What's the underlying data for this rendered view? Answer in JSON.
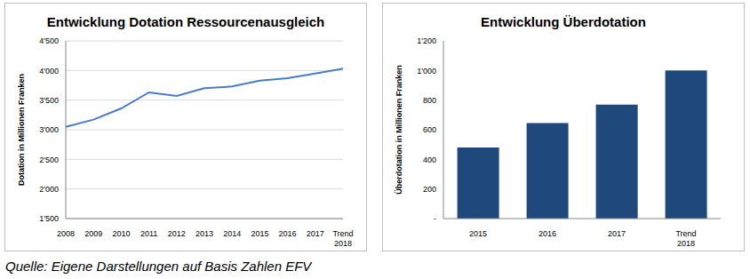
{
  "chart_data": [
    {
      "type": "line",
      "title": "Entwicklung Dotation Ressourcenausgleich",
      "y_label": "Dotation in Millionen Franken",
      "categories": [
        "2008",
        "2009",
        "2010",
        "2011",
        "2012",
        "2013",
        "2014",
        "2015",
        "2016",
        "2017",
        "Trend 2018"
      ],
      "values": [
        3050,
        3170,
        3360,
        3630,
        3570,
        3700,
        3730,
        3830,
        3870,
        3950,
        4030
      ],
      "color": "#4a7bc8",
      "ylim": [
        1500,
        4500
      ],
      "yticks": [
        {
          "value": 1500,
          "label": "1'500"
        },
        {
          "value": 2000,
          "label": "2'000"
        },
        {
          "value": 2500,
          "label": "2'500"
        },
        {
          "value": 3000,
          "label": "3'000"
        },
        {
          "value": 3500,
          "label": "3'500"
        },
        {
          "value": 4000,
          "label": "4'000"
        },
        {
          "value": 4500,
          "label": "4'500"
        }
      ],
      "grid": true
    },
    {
      "type": "bar",
      "title": "Entwicklung Überdotation",
      "y_label": "Überdotation in Millionen Franken",
      "categories": [
        "2015",
        "2016",
        "2017",
        "Trend 2018"
      ],
      "values": [
        480,
        645,
        770,
        1000
      ],
      "color": "#1f497d",
      "ylim": [
        0,
        1200
      ],
      "yticks": [
        {
          "value": 0,
          "label": "-"
        },
        200,
        400,
        600,
        800,
        {
          "value": 1000,
          "label": "1'000"
        },
        {
          "value": 1200,
          "label": "1'200"
        }
      ],
      "grid": false
    }
  ],
  "source": "Quelle: Eigene Darstellungen auf Basis Zahlen EFV"
}
